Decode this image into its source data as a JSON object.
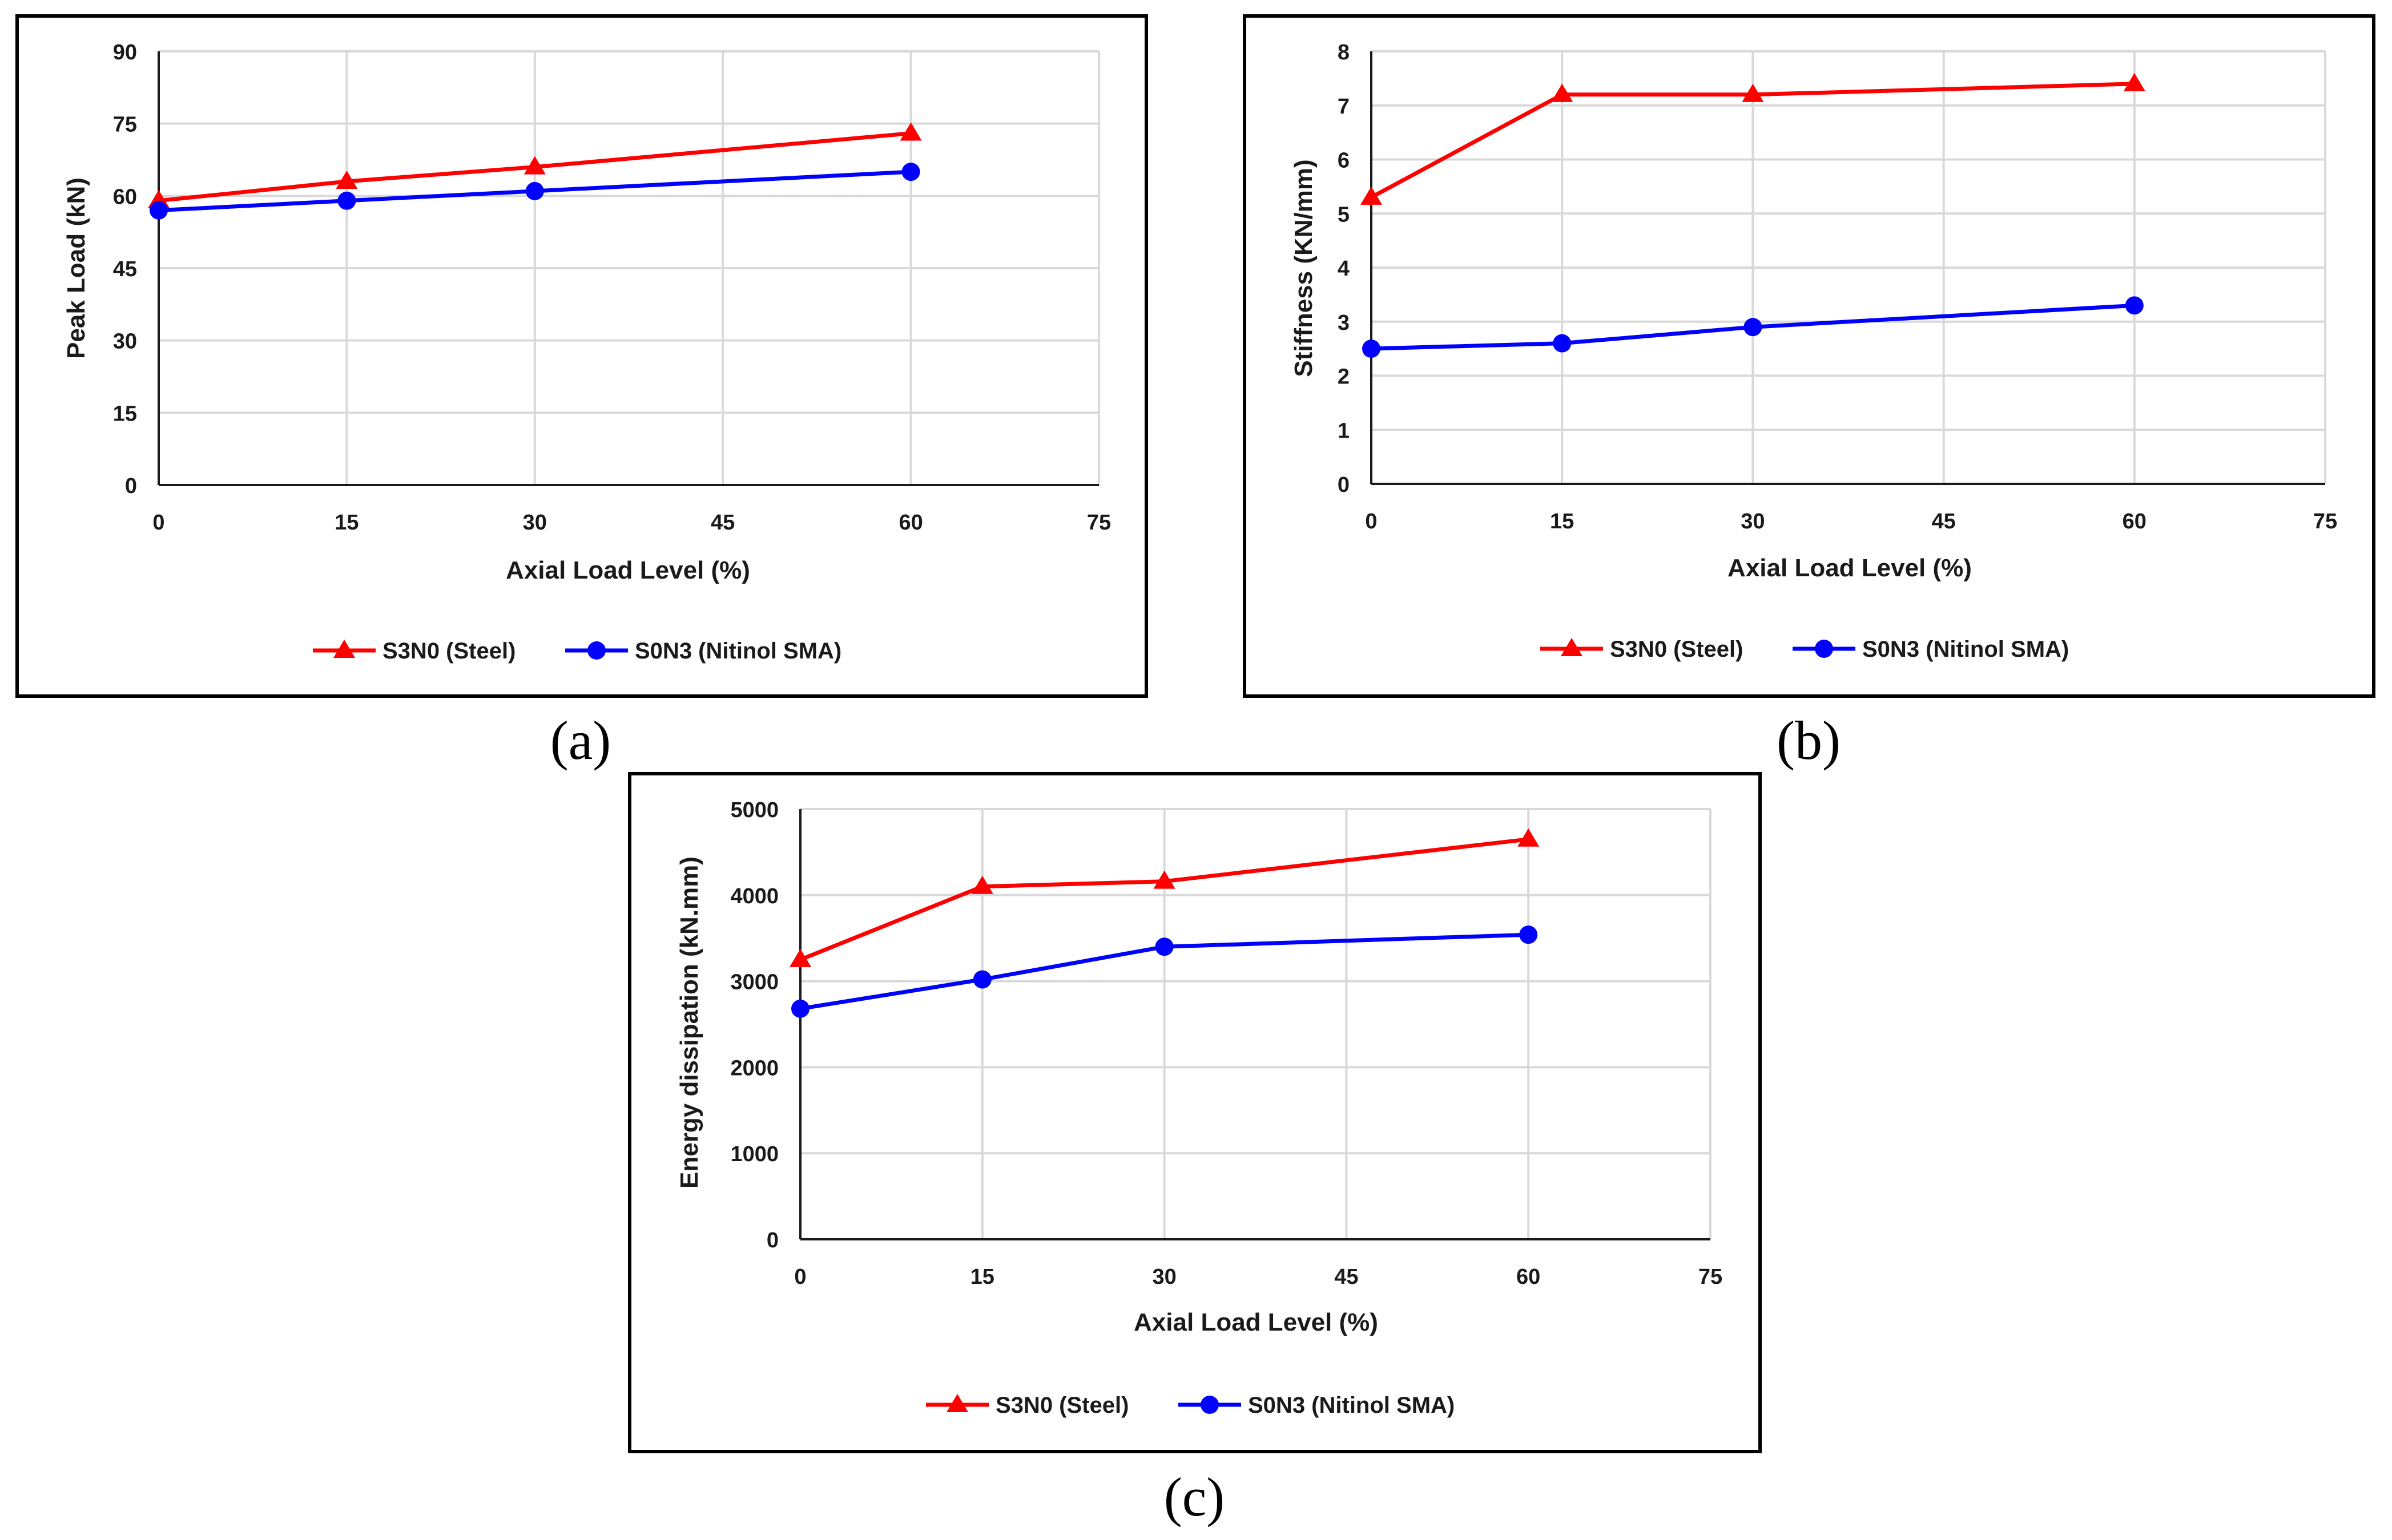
{
  "colors": {
    "steel": "#ff0000",
    "sma": "#0000ff",
    "grid": "#d9d9d9",
    "frame": "#000000"
  },
  "chart_data": [
    {
      "type": "line",
      "caption": "(a)",
      "xlabel": "Axial Load Level (%)",
      "ylabel": "Peak Load (kN)",
      "xlim": [
        0,
        75
      ],
      "ylim": [
        0,
        90
      ],
      "xticks": [
        "0",
        "15",
        "30",
        "45",
        "60",
        "75"
      ],
      "yticks": [
        "0",
        "15",
        "30",
        "45",
        "60",
        "75",
        "90"
      ],
      "x": [
        0,
        15,
        30,
        60
      ],
      "series": [
        {
          "name": "S3N0 (Steel)",
          "marker": "triangle",
          "color": "#ff0000",
          "values": [
            59,
            63,
            66,
            73
          ]
        },
        {
          "name": "S0N3 (Nitinol SMA)",
          "marker": "circle",
          "color": "#0000ff",
          "values": [
            57,
            59,
            61,
            65
          ]
        }
      ],
      "legend": "bottom"
    },
    {
      "type": "line",
      "caption": "(b)",
      "xlabel": "Axial Load Level (%)",
      "ylabel": "Stiffness (KN/mm)",
      "xlim": [
        0,
        75
      ],
      "ylim": [
        0,
        8
      ],
      "xticks": [
        "0",
        "15",
        "30",
        "45",
        "60",
        "75"
      ],
      "yticks": [
        "0",
        "1",
        "2",
        "3",
        "4",
        "5",
        "6",
        "7",
        "8"
      ],
      "x": [
        0,
        15,
        30,
        60
      ],
      "series": [
        {
          "name": "S3N0 (Steel)",
          "marker": "triangle",
          "color": "#ff0000",
          "values": [
            5.3,
            7.2,
            7.2,
            7.4
          ]
        },
        {
          "name": "S0N3 (Nitinol SMA)",
          "marker": "circle",
          "color": "#0000ff",
          "values": [
            2.5,
            2.6,
            2.9,
            3.3
          ]
        }
      ],
      "legend": "bottom"
    },
    {
      "type": "line",
      "caption": "(c)",
      "xlabel": "Axial Load Level (%)",
      "ylabel": "Energy dissipation (kN.mm)",
      "xlim": [
        0,
        75
      ],
      "ylim": [
        0,
        5000
      ],
      "xticks": [
        "0",
        "15",
        "30",
        "45",
        "60",
        "75"
      ],
      "yticks": [
        "0",
        "1000",
        "2000",
        "3000",
        "4000",
        "5000"
      ],
      "x": [
        0,
        15,
        30,
        60
      ],
      "series": [
        {
          "name": "S3N0 (Steel)",
          "marker": "triangle",
          "color": "#ff0000",
          "values": [
            3250,
            4100,
            4160,
            4650
          ]
        },
        {
          "name": "S0N3 (Nitinol SMA)",
          "marker": "circle",
          "color": "#0000ff",
          "values": [
            2680,
            3020,
            3400,
            3540
          ]
        }
      ],
      "legend": "bottom"
    }
  ]
}
